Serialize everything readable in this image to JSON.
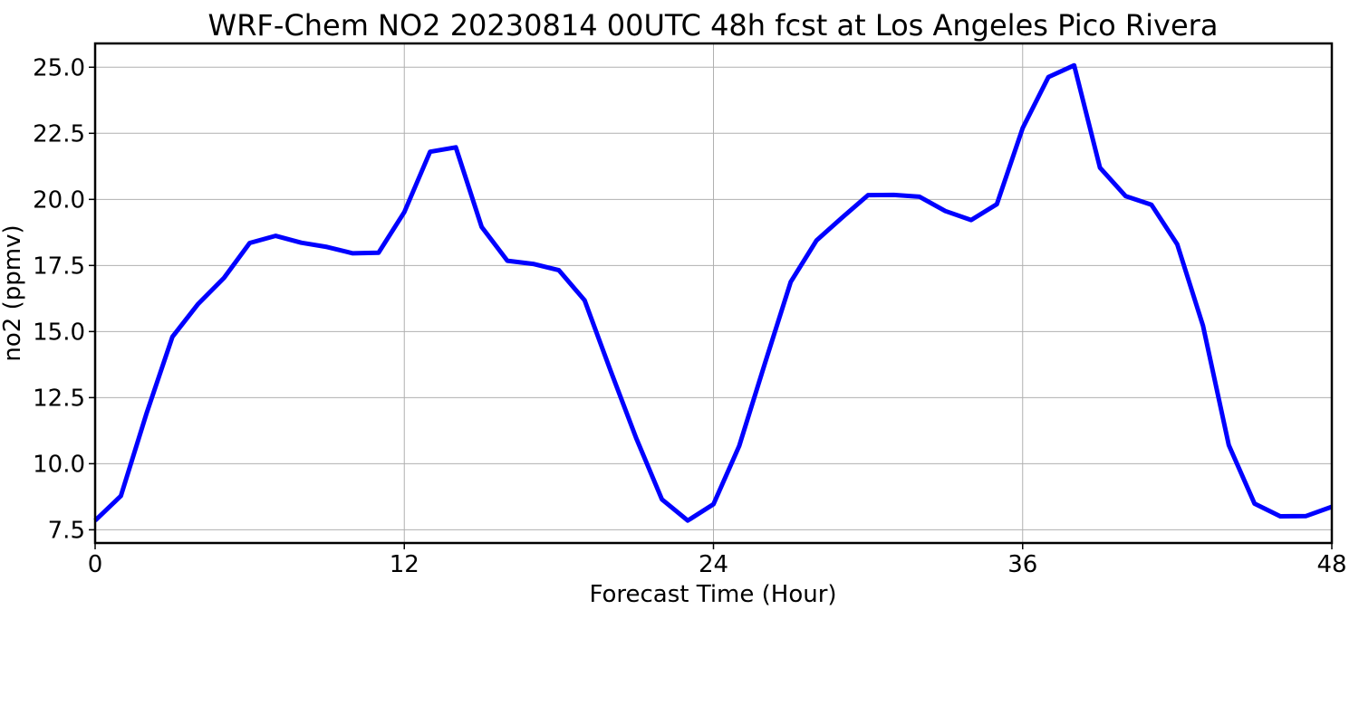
{
  "chart_data": {
    "type": "line",
    "title": "WRF-Chem NO2  20230814 00UTC 48h fcst at Los Angeles Pico Rivera",
    "xlabel": "Forecast Time (Hour)",
    "ylabel": "no2  (ppmv)",
    "xlim": [
      0,
      48
    ],
    "ylim": [
      7.0,
      25.9
    ],
    "x_ticks": [
      0,
      12,
      24,
      36,
      48
    ],
    "x_tick_labels": [
      "0",
      "12",
      "24",
      "36",
      "48"
    ],
    "y_ticks": [
      7.5,
      10.0,
      12.5,
      15.0,
      17.5,
      20.0,
      22.5,
      25.0
    ],
    "y_tick_labels": [
      "7.5",
      "10.0",
      "12.5",
      "15.0",
      "17.5",
      "20.0",
      "22.5",
      "25.0"
    ],
    "grid": true,
    "series": [
      {
        "color": "#0000ff",
        "x": [
          0,
          1,
          2,
          3,
          4,
          5,
          6,
          7,
          8,
          9,
          10,
          11,
          12,
          13,
          14,
          15,
          16,
          17,
          18,
          19,
          20,
          21,
          22,
          23,
          24,
          25,
          26,
          27,
          28,
          29,
          30,
          31,
          32,
          33,
          34,
          35,
          36,
          37,
          38,
          39,
          40,
          41,
          42,
          43,
          44,
          45,
          46,
          47,
          48
        ],
        "values": [
          7.85,
          8.78,
          11.92,
          14.8,
          16.05,
          17.03,
          18.35,
          18.62,
          18.36,
          18.2,
          17.96,
          17.98,
          19.52,
          21.8,
          21.97,
          18.96,
          17.68,
          17.56,
          17.32,
          16.18,
          13.53,
          10.97,
          8.65,
          7.85,
          8.47,
          10.67,
          13.81,
          16.88,
          18.45,
          19.32,
          20.16,
          20.17,
          20.1,
          19.56,
          19.22,
          19.82,
          22.7,
          24.63,
          25.07,
          21.2,
          20.12,
          19.8,
          18.3,
          15.22,
          10.7,
          8.49,
          8.01,
          8.02,
          8.37
        ]
      }
    ]
  }
}
